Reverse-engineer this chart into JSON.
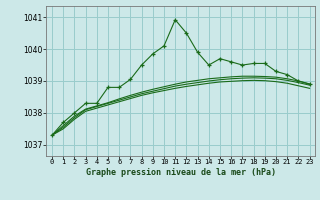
{
  "x": [
    0,
    1,
    2,
    3,
    4,
    5,
    6,
    7,
    8,
    9,
    10,
    11,
    12,
    13,
    14,
    15,
    16,
    17,
    18,
    19,
    20,
    21,
    22,
    23
  ],
  "y_main": [
    1037.3,
    1037.7,
    1038.0,
    1038.3,
    1038.3,
    1038.8,
    1038.8,
    1039.05,
    1039.5,
    1039.85,
    1040.1,
    1040.92,
    1040.5,
    1039.9,
    1039.5,
    1039.7,
    1039.6,
    1039.5,
    1039.55,
    1039.55,
    1039.3,
    1039.2,
    1039.0,
    1038.9
  ],
  "y_smooth1": [
    1037.3,
    1037.5,
    1037.8,
    1038.05,
    1038.15,
    1038.25,
    1038.35,
    1038.45,
    1038.55,
    1038.63,
    1038.7,
    1038.77,
    1038.83,
    1038.88,
    1038.93,
    1038.97,
    1038.99,
    1039.01,
    1039.02,
    1039.01,
    1038.98,
    1038.93,
    1038.85,
    1038.77
  ],
  "y_smooth2": [
    1037.3,
    1037.55,
    1037.85,
    1038.1,
    1038.2,
    1038.3,
    1038.4,
    1038.5,
    1038.6,
    1038.68,
    1038.76,
    1038.84,
    1038.9,
    1038.95,
    1039.0,
    1039.04,
    1039.07,
    1039.09,
    1039.1,
    1039.09,
    1039.07,
    1039.02,
    1038.95,
    1038.87
  ],
  "y_smooth3": [
    1037.3,
    1037.6,
    1037.9,
    1038.12,
    1038.22,
    1038.32,
    1038.44,
    1038.55,
    1038.65,
    1038.74,
    1038.82,
    1038.9,
    1038.97,
    1039.02,
    1039.07,
    1039.1,
    1039.13,
    1039.15,
    1039.15,
    1039.14,
    1039.12,
    1039.07,
    1039.0,
    1038.91
  ],
  "line_color": "#1a6b1a",
  "bg_color": "#cce8e8",
  "grid_color": "#99cccc",
  "ylabel_ticks": [
    1037,
    1038,
    1039,
    1040,
    1041
  ],
  "xlabel": "Graphe pression niveau de la mer (hPa)",
  "ylim": [
    1036.65,
    1041.35
  ],
  "xlim": [
    -0.5,
    23.5
  ]
}
